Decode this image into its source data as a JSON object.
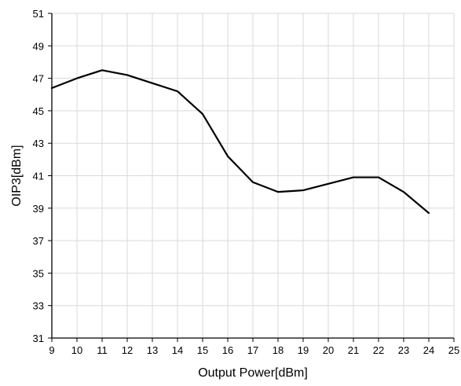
{
  "chart_data": {
    "type": "line",
    "title": "",
    "xlabel": "Output Power[dBm]",
    "ylabel": "OIP3[dBm]",
    "xlim": [
      9,
      25
    ],
    "ylim": [
      31,
      51
    ],
    "x_ticks": [
      "9",
      "10",
      "11",
      "12",
      "13",
      "14",
      "15",
      "16",
      "17",
      "18",
      "19",
      "20",
      "21",
      "22",
      "23",
      "24",
      "25"
    ],
    "y_ticks": [
      "31",
      "33",
      "35",
      "37",
      "39",
      "41",
      "43",
      "45",
      "47",
      "49",
      "51"
    ],
    "grid": true,
    "legend": "none",
    "series": [
      {
        "color": "#000000",
        "x": [
          9,
          10,
          11,
          12,
          13,
          14,
          15,
          16,
          17,
          18,
          19,
          20,
          21,
          22,
          23,
          24
        ],
        "y": [
          46.4,
          47.0,
          47.5,
          47.2,
          46.7,
          46.2,
          44.8,
          42.2,
          40.6,
          40.0,
          40.1,
          40.5,
          40.9,
          40.9,
          40.0,
          38.7
        ]
      }
    ]
  }
}
